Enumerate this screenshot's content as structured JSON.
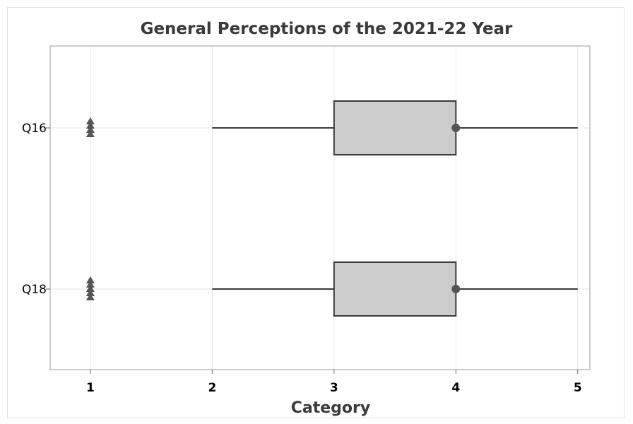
{
  "chart_data": {
    "type": "boxplot",
    "title": "General Perceptions of the 2021-22 Year",
    "xlabel": "Category",
    "ylabel": "",
    "xlim": [
      0.67,
      5.1
    ],
    "xticks": [
      1,
      2,
      3,
      4,
      5
    ],
    "grid": true,
    "orientation": "horizontal",
    "colors": {
      "box_fill": "#cccccc",
      "stroke": "#3b3b3b",
      "marker": "#555555",
      "grid": "#e6e6e6"
    },
    "categories": [
      "Q16",
      "Q18"
    ],
    "series": [
      {
        "name": "Q16",
        "whisker_low": 2,
        "q1": 3,
        "median": 4,
        "q3": 4,
        "whisker_high": 5,
        "outliers": [
          1,
          1,
          1,
          1
        ],
        "outlier_marker": "triangle"
      },
      {
        "name": "Q18",
        "whisker_low": 2,
        "q1": 3,
        "median": 4,
        "q3": 4,
        "whisker_high": 5,
        "outliers": [
          1,
          1,
          1,
          1,
          1
        ],
        "outlier_marker": "triangle"
      }
    ]
  }
}
